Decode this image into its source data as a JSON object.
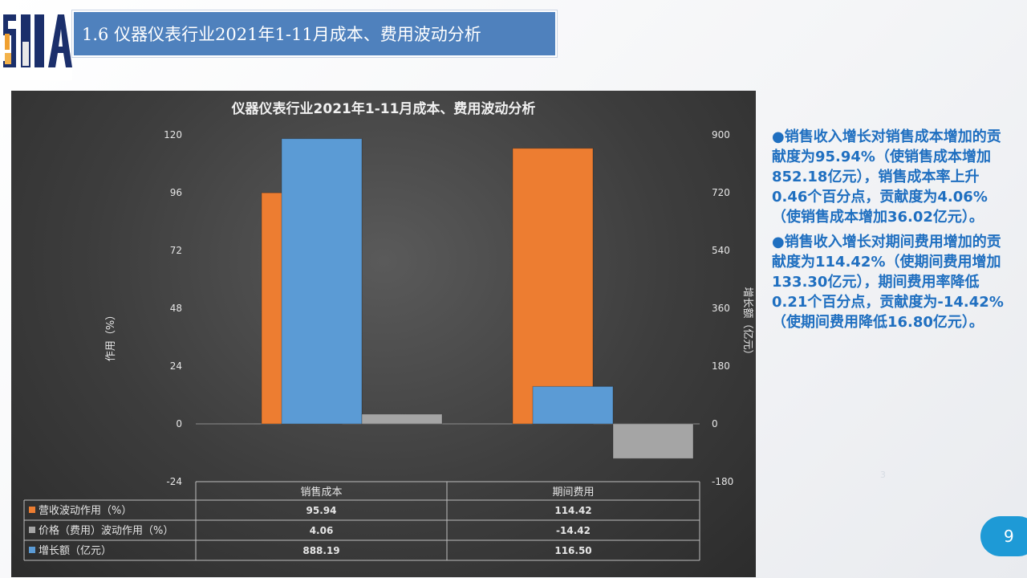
{
  "slide": {
    "title": "1.6 仪器仪表行业2021年1-11月成本、费用波动分析",
    "logo_text": "SIIA",
    "page_number": "9",
    "faint_mark": "3"
  },
  "side_notes": [
    "●销售收入增长对销售成本增加的贡献度为95.94%（使销售成本增加852.18亿元），销售成本率上升0.46个百分点，贡献度为4.06%（使销售成本增加36.02亿元）。",
    "●销售收入增长对期间费用增加的贡献度为114.42%（使期间费用增加133.30亿元），期间费用率降低0.21个百分点，贡献度为-14.42%（使期间费用降低16.80亿元）。"
  ],
  "colors": {
    "orange": "#ed7d31",
    "gray": "#a5a5a5",
    "blue": "#5b9bd5",
    "title_bar": "#4f81bd",
    "note_text": "#1f6fc0"
  },
  "chart_data": {
    "type": "bar",
    "title": "仪器仪表行业2021年1-11月成本、费用波动分析",
    "categories": [
      "销售成本",
      "期间费用"
    ],
    "ylabel_left": "作用（%）",
    "ylabel_right": "增长额（亿元）",
    "ylim_left": [
      -24,
      120
    ],
    "ylim_right": [
      -180,
      900
    ],
    "ticks_left": [
      -24,
      0,
      24,
      48,
      72,
      96,
      120
    ],
    "ticks_right": [
      -180,
      0,
      180,
      360,
      540,
      720,
      900
    ],
    "grid": false,
    "legend": "data-table",
    "series": [
      {
        "name": "营收波动作用（%）",
        "axis": "left",
        "color": "#ed7d31",
        "values": [
          95.94,
          114.42
        ],
        "labels": [
          "95.94",
          "114.42"
        ]
      },
      {
        "name": "价格（费用）波动作用（%）",
        "axis": "left",
        "color": "#a5a5a5",
        "values": [
          4.06,
          -14.42
        ],
        "labels": [
          "4.06",
          "-14.42"
        ]
      },
      {
        "name": "增长额（亿元）",
        "axis": "right",
        "color": "#5b9bd5",
        "values": [
          888.19,
          116.5
        ],
        "labels": [
          "888.19",
          "116.50"
        ]
      }
    ]
  }
}
